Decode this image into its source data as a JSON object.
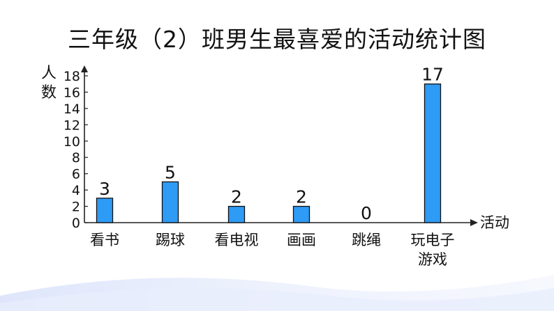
{
  "chart_data": {
    "type": "bar",
    "title": "三年级（2）班男生最喜爱的活动统计图",
    "xlabel": "活动",
    "ylabel": "人数",
    "categories": [
      [
        "看书"
      ],
      [
        "踢球"
      ],
      [
        "看电视"
      ],
      [
        "画画"
      ],
      [
        "跳绳"
      ],
      [
        "玩电子",
        "游戏"
      ]
    ],
    "values": [
      3,
      5,
      2,
      2,
      0,
      17
    ],
    "data_labels": [
      "3",
      "5",
      "2",
      "2",
      "0",
      "17"
    ],
    "yticks": [
      0,
      2,
      4,
      6,
      8,
      10,
      12,
      14,
      16,
      18
    ],
    "ylim": [
      0,
      18
    ],
    "grid": false,
    "bar_color": "#2e9bf5"
  }
}
